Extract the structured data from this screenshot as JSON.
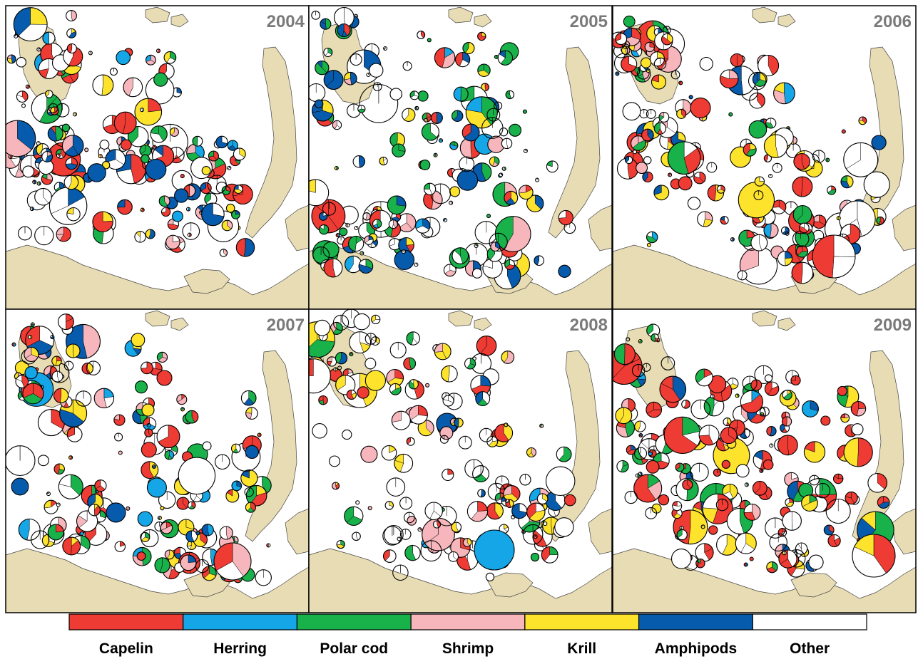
{
  "panels": [
    {
      "year": "2004",
      "density": "high-north"
    },
    {
      "year": "2005",
      "density": "high-central"
    },
    {
      "year": "2006",
      "density": "east"
    },
    {
      "year": "2007",
      "density": "mixed"
    },
    {
      "year": "2008",
      "density": "sparse"
    },
    {
      "year": "2009",
      "density": "dense-red"
    }
  ],
  "legend": [
    {
      "label": "Capelin",
      "color": "#ee3b33"
    },
    {
      "label": "Herring",
      "color": "#14a6e6"
    },
    {
      "label": "Polar cod",
      "color": "#18b14a"
    },
    {
      "label": "Shrimp",
      "color": "#f6b6bc"
    },
    {
      "label": "Krill",
      "color": "#fde32c"
    },
    {
      "label": "Amphipods",
      "color": "#075bac"
    },
    {
      "label": "Other",
      "color": "#ffffff"
    }
  ],
  "colors": {
    "land": "#e8dcb4",
    "sea": "#ffffff",
    "frame": "#000000",
    "year_text": "#7a7a7a"
  }
}
